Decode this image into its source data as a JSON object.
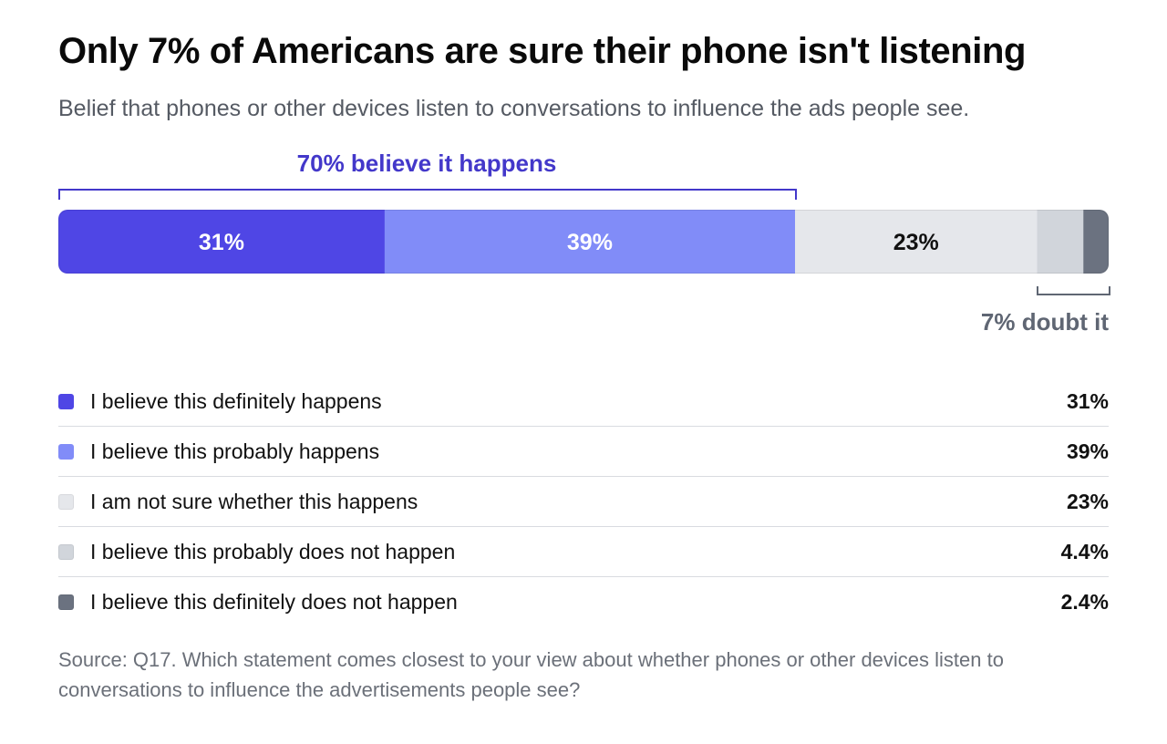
{
  "title": "Only 7% of Americans are sure their phone isn't listening",
  "subtitle": "Belief that phones or other devices listen to conversations to influence the ads people see.",
  "chart_data": {
    "type": "bar",
    "orientation": "horizontal-stacked",
    "title": "Only 7% of Americans are sure their phone isn't listening",
    "subtitle": "Belief that phones or other devices listen to conversations to influence the ads people see.",
    "categories": [
      "I believe this definitely happens",
      "I believe this probably happens",
      "I am not sure whether this happens",
      "I believe this probably does not happen",
      "I believe this definitely does not happen"
    ],
    "values": [
      31,
      39,
      23,
      4.4,
      2.4
    ],
    "value_labels": [
      "31%",
      "39%",
      "23%",
      "4.4%",
      "2.4%"
    ],
    "bar_labels": [
      "31%",
      "39%",
      "23%",
      "",
      ""
    ],
    "colors": [
      "#4f46e5",
      "#818cf8",
      "#e5e7eb",
      "#d1d5db",
      "#6b7280"
    ],
    "bar_text_colors": [
      "#ffffff",
      "#ffffff",
      "#111111",
      "#111111",
      "#ffffff"
    ],
    "annotations": {
      "believe": {
        "label": "70% believe it happens",
        "from_index": 0,
        "to_index": 1,
        "color": "#4338ca"
      },
      "doubt": {
        "label": "7% doubt it",
        "from_index": 3,
        "to_index": 4,
        "color": "#5f6673"
      }
    },
    "legend_position": "below",
    "grid": false,
    "xlim": [
      0,
      100
    ]
  },
  "source": "Source: Q17. Which statement comes closest to your view about whether phones or other devices listen to conversations to influence the advertisements people see?"
}
